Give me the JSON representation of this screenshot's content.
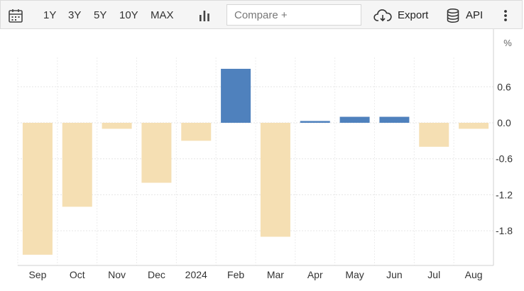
{
  "toolbar": {
    "calendar_icon": "calendar-icon",
    "ranges": [
      "1Y",
      "3Y",
      "5Y",
      "10Y",
      "MAX"
    ],
    "chart_type_icon": "bar-chart-icon",
    "compare_placeholder": "Compare +",
    "export_label": "Export",
    "export_icon": "cloud-download-icon",
    "api_label": "API",
    "api_icon": "database-icon",
    "menu_icon": "more-vertical-icon"
  },
  "colors": {
    "positive": "#4f81bd",
    "negative": "#f5dfb3"
  },
  "chart_data": {
    "type": "bar",
    "categories": [
      "Sep",
      "Oct",
      "Nov",
      "Dec",
      "2024",
      "Feb",
      "Mar",
      "Apr",
      "May",
      "Jun",
      "Jul",
      "Aug"
    ],
    "values": [
      -2.2,
      -1.4,
      -0.1,
      -1.0,
      -0.3,
      0.9,
      -1.9,
      0.03,
      0.1,
      0.1,
      -0.4,
      -0.1
    ],
    "unit": "%",
    "yticks": [
      "0.6",
      "0.0",
      "-0.6",
      "-1.2",
      "-1.8"
    ],
    "ylim": [
      -2.4,
      1.2
    ],
    "grid": true
  }
}
